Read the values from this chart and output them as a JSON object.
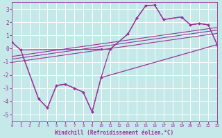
{
  "xlabel": "Windchill (Refroidissement éolien,°C)",
  "bg_color": "#c5e8e8",
  "grid_color": "#aadddd",
  "line_color": "#993399",
  "xlim": [
    0,
    23
  ],
  "ylim": [
    -5.5,
    3.5
  ],
  "xtick_pos": [
    0,
    1,
    2,
    3,
    4,
    5,
    6,
    7,
    8,
    9,
    10,
    11,
    12,
    13,
    14,
    15,
    16,
    17,
    18,
    19,
    20,
    21,
    22,
    23
  ],
  "ytick_pos": [
    -5,
    -4,
    -3,
    -2,
    -1,
    0,
    1,
    2,
    3
  ],
  "line1_x": [
    0,
    1,
    3,
    4,
    5,
    6,
    7,
    8,
    9,
    10,
    11,
    13,
    14,
    15,
    16,
    17,
    19,
    20,
    21,
    22,
    23
  ],
  "line1_y": [
    0.5,
    -0.1,
    -3.8,
    -4.5,
    -2.8,
    -2.7,
    -3.0,
    -3.3,
    -4.8,
    -2.2,
    -0.05,
    1.1,
    2.3,
    3.25,
    3.3,
    2.2,
    2.4,
    1.8,
    1.9,
    1.8,
    0.3
  ],
  "line2_x": [
    0,
    1,
    10,
    11,
    13,
    14,
    15,
    16,
    17,
    19,
    20,
    21,
    22,
    23
  ],
  "line2_y": [
    0.5,
    -0.1,
    -0.05,
    -0.05,
    1.1,
    2.3,
    3.25,
    3.3,
    2.2,
    2.4,
    1.8,
    1.9,
    1.8,
    0.3
  ],
  "trend1_x": [
    0,
    23
  ],
  "trend1_y": [
    -0.6,
    1.6
  ],
  "trend2_x": [
    0,
    23
  ],
  "trend2_y": [
    -0.8,
    1.4
  ],
  "trend3_x": [
    0,
    23
  ],
  "trend3_y": [
    -1.05,
    1.15
  ],
  "outer_top_x": [
    1,
    3,
    4,
    5,
    6,
    7,
    8,
    9,
    10,
    23
  ],
  "outer_top_y": [
    -0.1,
    -3.8,
    -4.5,
    -2.8,
    -2.7,
    -3.0,
    -3.3,
    -4.8,
    -2.2,
    0.3
  ]
}
